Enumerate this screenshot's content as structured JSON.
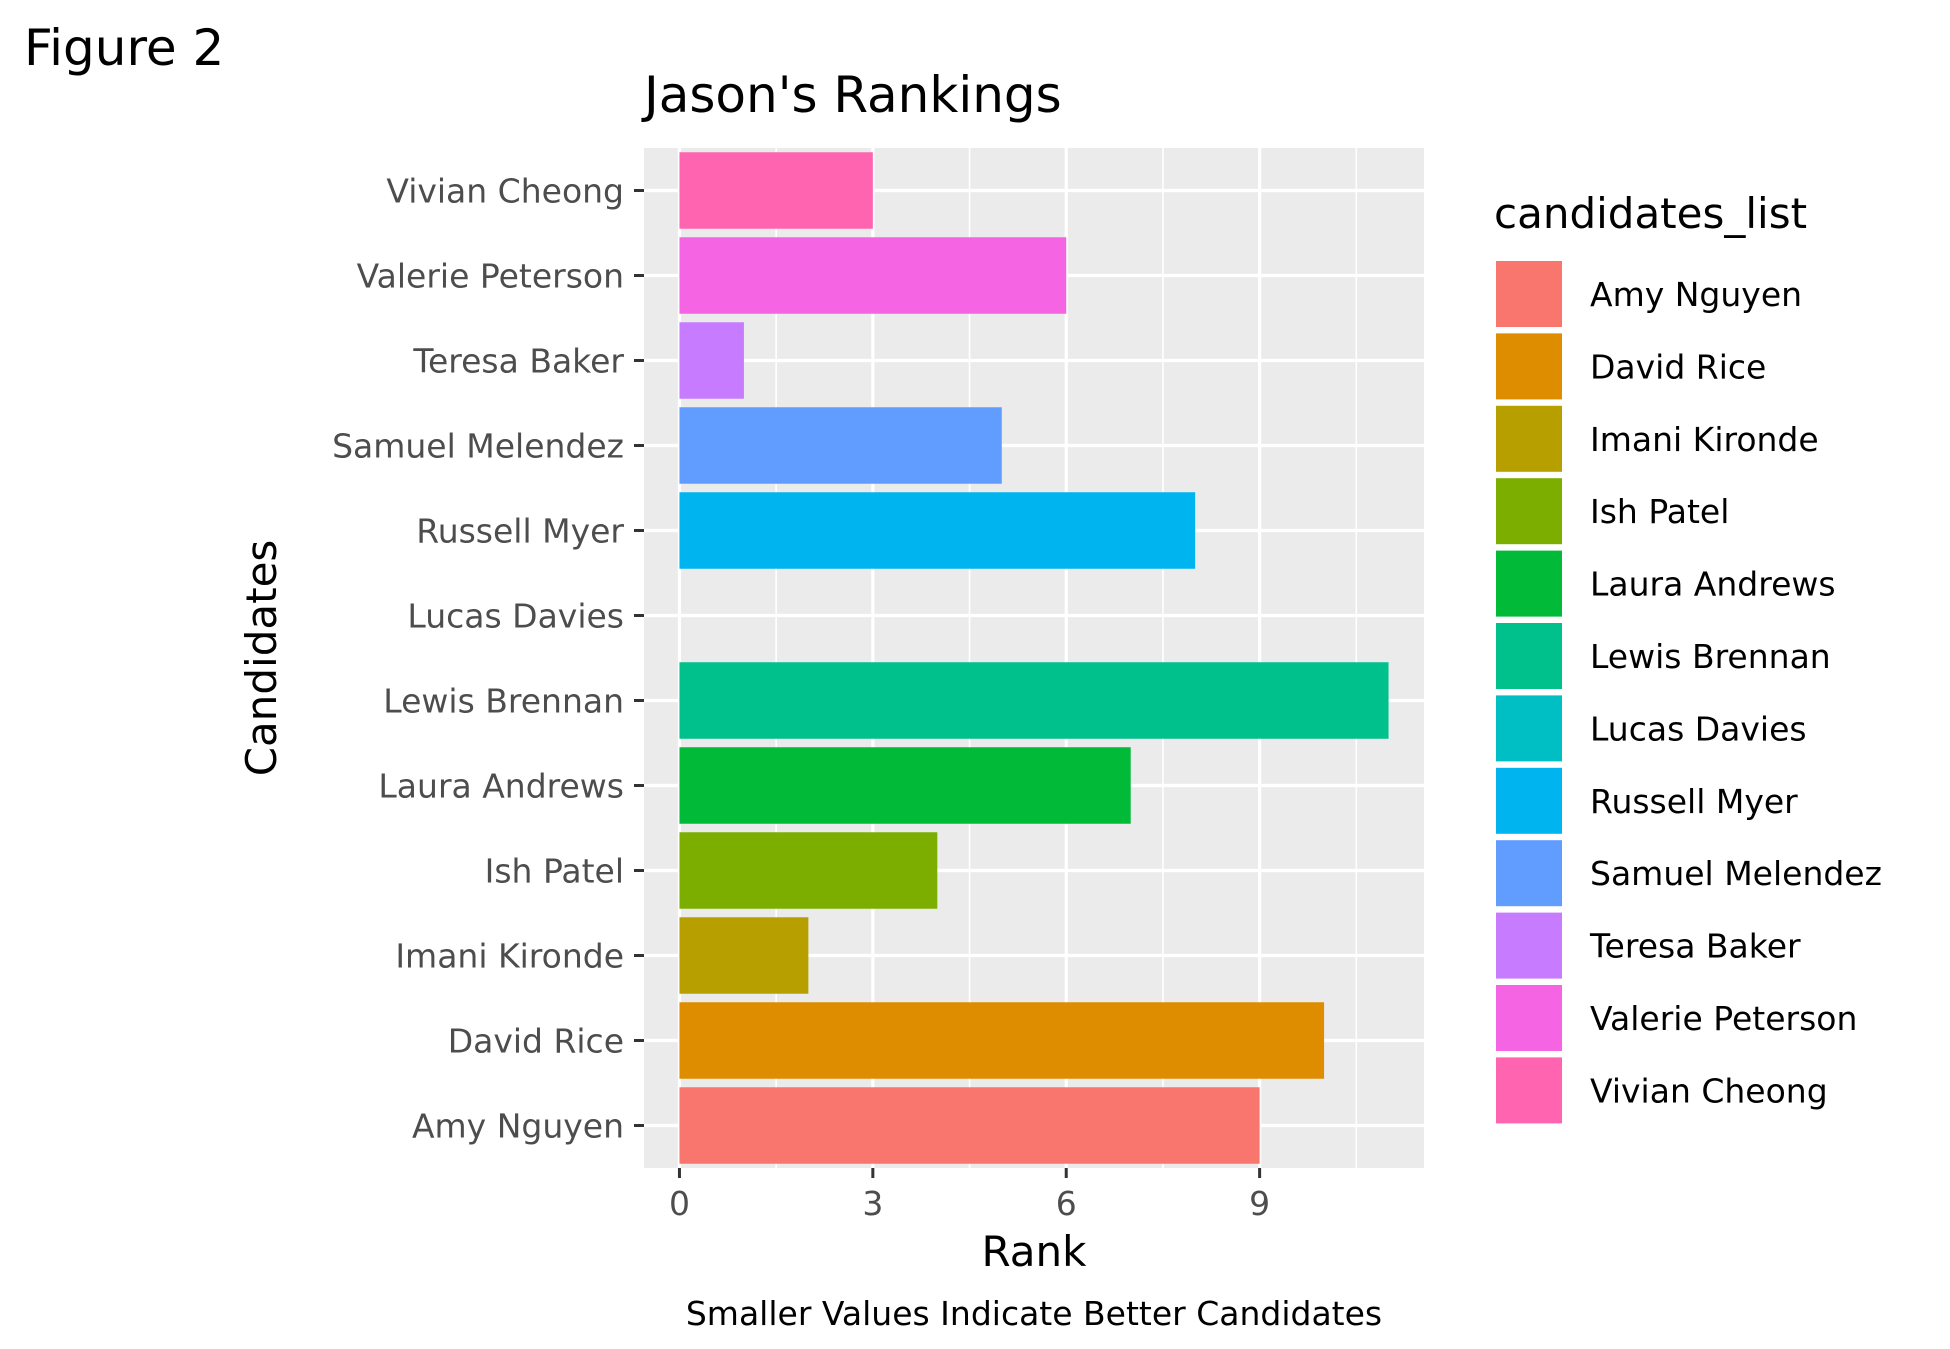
{
  "figure_label": "Figure 2",
  "chart_data": {
    "type": "bar",
    "orientation": "horizontal",
    "title": "Jason's Rankings",
    "xlabel": "Rank",
    "ylabel": "Candidates",
    "caption": "Smaller Values Indicate Better Candidates",
    "xlim": [
      -0.55,
      11.55
    ],
    "x_ticks": [
      0,
      3,
      6,
      9
    ],
    "x_tick_labels": [
      "0",
      "3",
      "6",
      "9"
    ],
    "x_minor_gridlines": [
      1.5,
      4.5,
      7.5,
      10.5
    ],
    "grid": true,
    "panel_background": "#EBEBEB",
    "grid_color": "#FFFFFF",
    "categories": [
      "Amy Nguyen",
      "David Rice",
      "Imani Kironde",
      "Ish Patel",
      "Laura Andrews",
      "Lewis Brennan",
      "Lucas Davies",
      "Russell Myer",
      "Samuel Melendez",
      "Teresa Baker",
      "Valerie Peterson",
      "Vivian Cheong"
    ],
    "values": [
      9,
      10,
      2,
      4,
      7,
      11,
      null,
      8,
      5,
      1,
      6,
      3
    ],
    "colors": [
      "#F8766D",
      "#DE8C00",
      "#B79F00",
      "#7CAE00",
      "#00BA38",
      "#00C08B",
      "#00BFC4",
      "#00B4F0",
      "#619CFF",
      "#C77CFF",
      "#F564E3",
      "#FF64B0"
    ],
    "legend": {
      "title": "candidates_list",
      "position": "right"
    }
  }
}
